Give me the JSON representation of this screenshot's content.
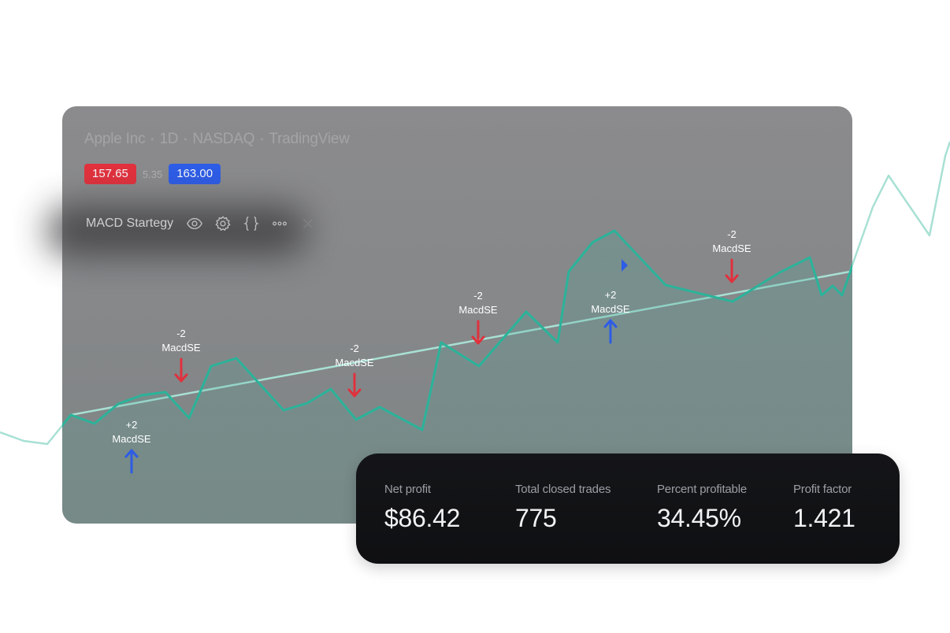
{
  "header": {
    "symbol_name": "Apple Inc",
    "interval": "1D",
    "exchange": "NASDAQ",
    "source": "TradingView"
  },
  "prices": {
    "sell": "157.65",
    "spread": "5.35",
    "buy": "163.00",
    "sell_color": "#e0313d",
    "buy_color": "#2d5ce6"
  },
  "strategy": {
    "name": "MACD Startegy",
    "icons": [
      "eye-icon",
      "gear-icon",
      "braces-icon",
      "more-icon",
      "close-icon"
    ]
  },
  "chart_data": {
    "type": "area",
    "line_color": "#2bb39a",
    "signals": [
      {
        "qty": "+2",
        "name": "MacdSE",
        "direction": "up",
        "color": "#2d5ce6"
      },
      {
        "qty": "-2",
        "name": "MacdSE",
        "direction": "down",
        "color": "#e0313d"
      },
      {
        "qty": "-2",
        "name": "MacdSE",
        "direction": "down",
        "color": "#e0313d"
      },
      {
        "qty": "-2",
        "name": "MacdSE",
        "direction": "down",
        "color": "#e0313d"
      },
      {
        "qty": "+2",
        "name": "MacdSE",
        "direction": "up",
        "color": "#2d5ce6"
      },
      {
        "qty": "-2",
        "name": "MacdSE",
        "direction": "down",
        "color": "#e0313d"
      }
    ]
  },
  "stats": [
    {
      "label": "Net profit",
      "value": "$86.42"
    },
    {
      "label": "Total closed trades",
      "value": "775"
    },
    {
      "label": "Percent profitable",
      "value": "34.45%"
    },
    {
      "label": "Profit factor",
      "value": "1.421"
    }
  ]
}
